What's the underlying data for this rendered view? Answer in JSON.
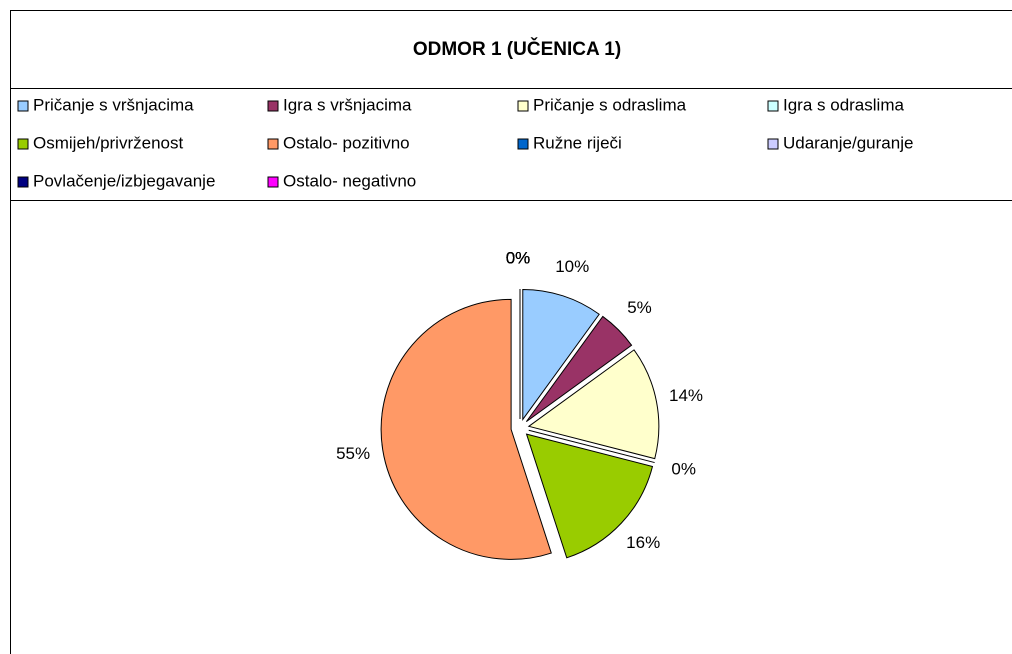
{
  "chart_data": {
    "type": "pie",
    "title": "ODMOR 1 (UČENICA 1)",
    "categories": [
      "Pričanje s vršnjacima",
      "Igra s vršnjacima",
      "Pričanje s odraslima",
      "Igra s odraslima",
      "Osmijeh/privrženost",
      "Ostalo- pozitivno",
      "Ružne riječi",
      "Udaranje/guranje",
      "Povlačenje/izbjegavanje",
      "Ostalo- negativno"
    ],
    "values": [
      10,
      5,
      14,
      0,
      16,
      55,
      0,
      0,
      0,
      0
    ],
    "value_labels": [
      "10%",
      "5%",
      "14%",
      "0%",
      "16%",
      "55%",
      "0%",
      "0%",
      "0%",
      "0%"
    ],
    "colors": [
      "#99ccff",
      "#993366",
      "#ffffcc",
      "#ccffff",
      "#99cc00",
      "#ff9966",
      "#0066cc",
      "#ccccff",
      "#000080",
      "#ff00ff"
    ],
    "legend": "top"
  }
}
